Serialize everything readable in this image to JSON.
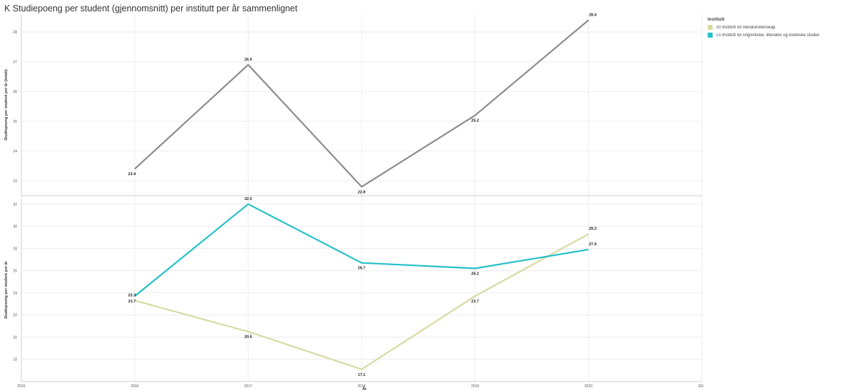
{
  "title": "K Studiepoeng per student (gjennomsnitt) per institutt per år sammenlignet",
  "legend": {
    "title": "Institutt",
    "items": [
      {
        "label": "20 Institutt for literaturvitenskap",
        "color": "#d9d9a3"
      },
      {
        "label": "21 Institutt for lingvistiske, litterære og estetiske studier",
        "color": "#25c0c8"
      }
    ]
  },
  "chart_data": [
    {
      "type": "line",
      "ylabel": "Studiepoeng per student per år (totalt)",
      "x": [
        2016,
        2017,
        2018,
        2019,
        2020
      ],
      "xlim": [
        2015,
        2021
      ],
      "ylim": [
        22.5,
        28.6
      ],
      "yticks": [
        23,
        24,
        25,
        26,
        27,
        28
      ],
      "yticklabels": [
        "23",
        "24",
        "25",
        "26",
        "27",
        "28"
      ],
      "series": [
        {
          "color": "#8c8c8c",
          "values": [
            23.4,
            26.9,
            22.8,
            25.2,
            28.4
          ],
          "labels": [
            "23.4",
            "26.9",
            "22.8",
            "25.2",
            "28.4"
          ]
        }
      ]
    },
    {
      "type": "line",
      "ylabel": "Studiepoeng per student per år",
      "x": [
        2016,
        2017,
        2018,
        2019,
        2020
      ],
      "xlim": [
        2015,
        2021
      ],
      "ylim": [
        16,
        32.5
      ],
      "yticks": [
        18,
        20,
        22,
        24,
        26,
        28,
        30,
        32
      ],
      "yticklabels": [
        "18",
        "20",
        "22",
        "24",
        "26",
        "28",
        "30",
        "32"
      ],
      "series": [
        {
          "name": "20 Institutt for literaturvitenskap",
          "color": "#d9d9a3",
          "values": [
            23.3,
            20.5,
            17.1,
            23.7,
            29.3
          ],
          "labels": [
            "23.3",
            "20.5",
            "17.1",
            "23.7",
            "29.3"
          ]
        },
        {
          "name": "21 Institutt for lingvistiske, litterære og estetiske studier",
          "color": "#25c0c8",
          "values": [
            23.7,
            32.0,
            26.7,
            26.2,
            27.9
          ],
          "labels": [
            "23.7",
            "32.0",
            "26.7",
            "26.2",
            "27.9"
          ]
        }
      ]
    }
  ],
  "xticklabels": [
    "2015",
    "2016",
    "2017",
    "2018",
    "2019",
    "2020",
    "2021"
  ],
  "xtickvalues": [
    2015,
    2016,
    2017,
    2018,
    2019,
    2020,
    2021
  ],
  "xlabel": "År"
}
